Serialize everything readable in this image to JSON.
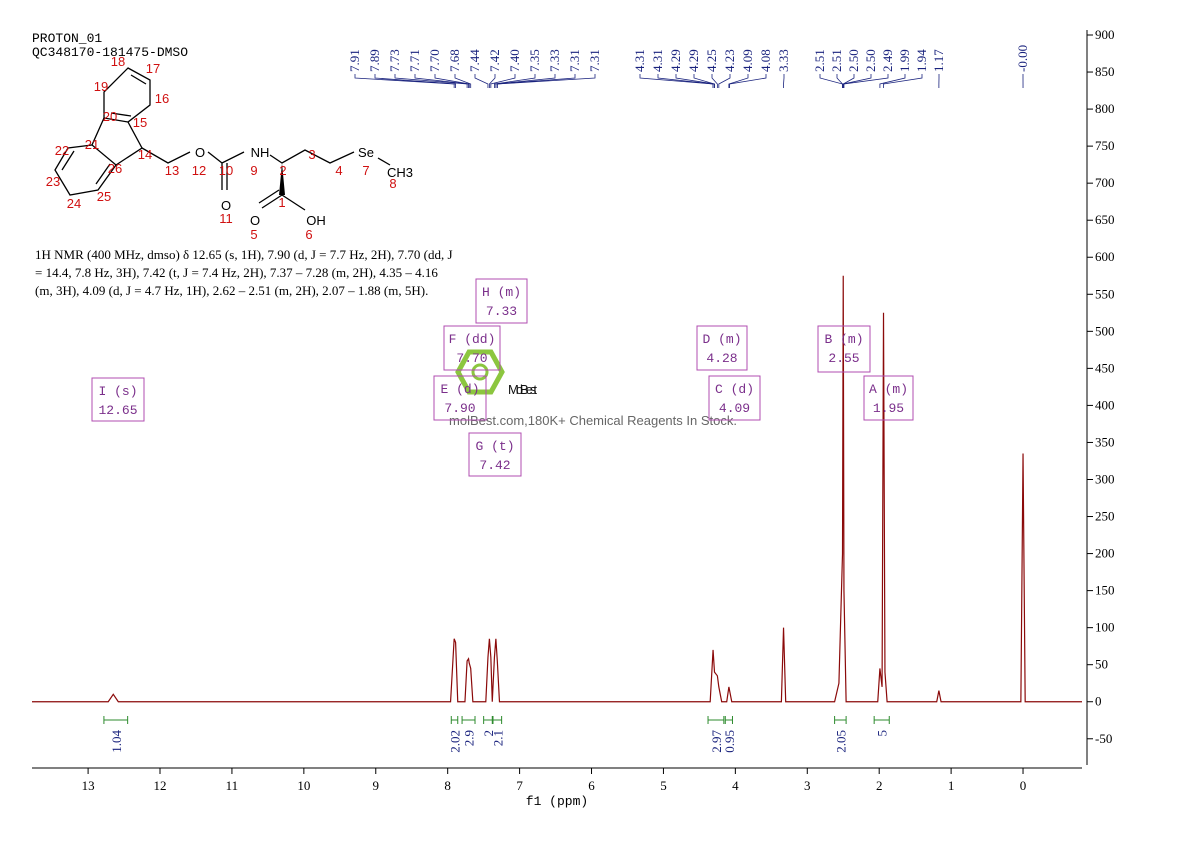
{
  "header": {
    "lines": [
      "PROTON_01",
      "QC348170-181475-DMSO"
    ]
  },
  "structure": {
    "atoms": [
      "O",
      "NH",
      "Se",
      "CH3",
      "O",
      "O",
      "OH"
    ],
    "numbers": [
      "18",
      "17",
      "19",
      "16",
      "20",
      "15",
      "22",
      "21",
      "14",
      "26",
      "13",
      "12",
      "10",
      "9",
      "2",
      "3",
      "4",
      "7",
      "8",
      "23",
      "24",
      "25",
      "1",
      "11",
      "5",
      "6"
    ]
  },
  "description": "1H NMR (400 MHz, dmso) δ 12.65 (s, 1H), 7.90 (d, J = 7.7 Hz, 2H), 7.70 (dd, J = 14.4, 7.8 Hz, 3H), 7.42 (t, J = 7.4 Hz, 2H), 7.37 – 7.28 (m, 2H), 4.35 – 4.16 (m, 3H), 4.09 (d, J = 4.7 Hz, 1H), 2.62 – 2.51 (m, 2H), 2.07 – 1.88 (m, 5H).",
  "watermark": {
    "logo": "MolBest",
    "text": "molBest.com,180K+ Chemical Reagents In Stock."
  },
  "chart_data": {
    "type": "line",
    "xlabel": "f1 (ppm)",
    "color": "#8b0a0a",
    "x": [
      13.78,
      12.72,
      12.65,
      12.58,
      7.96,
      7.91,
      7.89,
      7.86,
      7.76,
      7.73,
      7.71,
      7.7,
      7.68,
      7.65,
      7.47,
      7.44,
      7.42,
      7.4,
      7.38,
      7.35,
      7.33,
      7.31,
      7.28,
      4.35,
      4.31,
      4.29,
      4.25,
      4.23,
      4.19,
      4.12,
      4.09,
      4.08,
      4.05,
      3.36,
      3.33,
      3.3,
      2.62,
      2.56,
      2.51,
      2.5,
      2.49,
      2.46,
      2.02,
      1.99,
      1.96,
      1.94,
      1.92,
      1.89,
      1.2,
      1.17,
      1.14,
      0.03,
      0.0,
      -0.03,
      -0.82
    ],
    "values": [
      0,
      0,
      10,
      0,
      0,
      85,
      80,
      0,
      0,
      55,
      58,
      52,
      45,
      0,
      0,
      60,
      85,
      60,
      0,
      60,
      85,
      55,
      0,
      0,
      70,
      40,
      35,
      20,
      0,
      0,
      20,
      15,
      0,
      0,
      100,
      0,
      0,
      25,
      200,
      575,
      150,
      0,
      0,
      45,
      20,
      525,
      40,
      0,
      0,
      15,
      0,
      0,
      335,
      0,
      0
    ],
    "xlim": [
      13.78,
      -0.82
    ],
    "xticks": [
      0,
      1,
      2,
      3,
      4,
      5,
      6,
      7,
      8,
      9,
      10,
      11,
      12,
      13
    ],
    "ylim": [
      -80,
      900
    ],
    "yticks": [
      -50,
      0,
      50,
      100,
      150,
      200,
      250,
      300,
      350,
      400,
      450,
      500,
      550,
      600,
      650,
      700,
      750,
      800,
      850,
      900
    ],
    "peak_labels": [
      {
        "value": 7.91,
        "label": "7.91"
      },
      {
        "value": 7.89,
        "label": "7.89"
      },
      {
        "value": 7.73,
        "label": "7.73"
      },
      {
        "value": 7.71,
        "label": "7.71"
      },
      {
        "value": 7.7,
        "label": "7.70"
      },
      {
        "value": 7.68,
        "label": "7.68"
      },
      {
        "value": 7.44,
        "label": "7.44"
      },
      {
        "value": 7.42,
        "label": "7.42"
      },
      {
        "value": 7.4,
        "label": "7.40"
      },
      {
        "value": 7.35,
        "label": "7.35"
      },
      {
        "value": 7.33,
        "label": "7.33"
      },
      {
        "value": 7.31,
        "label": "7.31"
      },
      {
        "value": 7.31,
        "label": "7.31"
      },
      {
        "value": 4.31,
        "label": "4.31"
      },
      {
        "value": 4.31,
        "label": "4.31"
      },
      {
        "value": 4.29,
        "label": "4.29"
      },
      {
        "value": 4.29,
        "label": "4.29"
      },
      {
        "value": 4.25,
        "label": "4.25"
      },
      {
        "value": 4.23,
        "label": "4.23"
      },
      {
        "value": 4.09,
        "label": "4.09"
      },
      {
        "value": 4.08,
        "label": "4.08"
      },
      {
        "value": 3.33,
        "label": "3.33"
      },
      {
        "value": 2.51,
        "label": "2.51"
      },
      {
        "value": 2.51,
        "label": "2.51"
      },
      {
        "value": 2.5,
        "label": "2.50"
      },
      {
        "value": 2.5,
        "label": "2.50"
      },
      {
        "value": 2.49,
        "label": "2.49"
      },
      {
        "value": 1.99,
        "label": "1.99"
      },
      {
        "value": 1.94,
        "label": "1.94"
      },
      {
        "value": 1.17,
        "label": "1.17"
      },
      {
        "value": 0,
        "label": "-0.00"
      }
    ],
    "integrals": [
      {
        "range": [
          12.78,
          12.45
        ],
        "value": 1.04
      },
      {
        "range": [
          7.95,
          7.86
        ],
        "value": 2.02
      },
      {
        "range": [
          7.8,
          7.62
        ],
        "value": 2.9
      },
      {
        "range": [
          7.5,
          7.38
        ],
        "value": 2.0
      },
      {
        "range": [
          7.37,
          7.25
        ],
        "value": 2.1
      },
      {
        "range": [
          4.38,
          4.16
        ],
        "value": 2.97
      },
      {
        "range": [
          4.14,
          4.04
        ],
        "value": 0.95
      },
      {
        "range": [
          2.62,
          2.46
        ],
        "value": 2.05
      },
      {
        "range": [
          2.07,
          1.86
        ],
        "value": 5.0
      }
    ],
    "multiplets": [
      {
        "label": "A (m)",
        "shift": "1.95"
      },
      {
        "label": "B (m)",
        "shift": "2.55"
      },
      {
        "label": "C (d)",
        "shift": "4.09"
      },
      {
        "label": "D (m)",
        "shift": "4.28"
      },
      {
        "label": "E (d)",
        "shift": "7.90"
      },
      {
        "label": "F (dd)",
        "shift": "7.70"
      },
      {
        "label": "G (t)",
        "shift": "7.42"
      },
      {
        "label": "H (m)",
        "shift": "7.33"
      },
      {
        "label": "I (s)",
        "shift": "12.65"
      }
    ]
  }
}
